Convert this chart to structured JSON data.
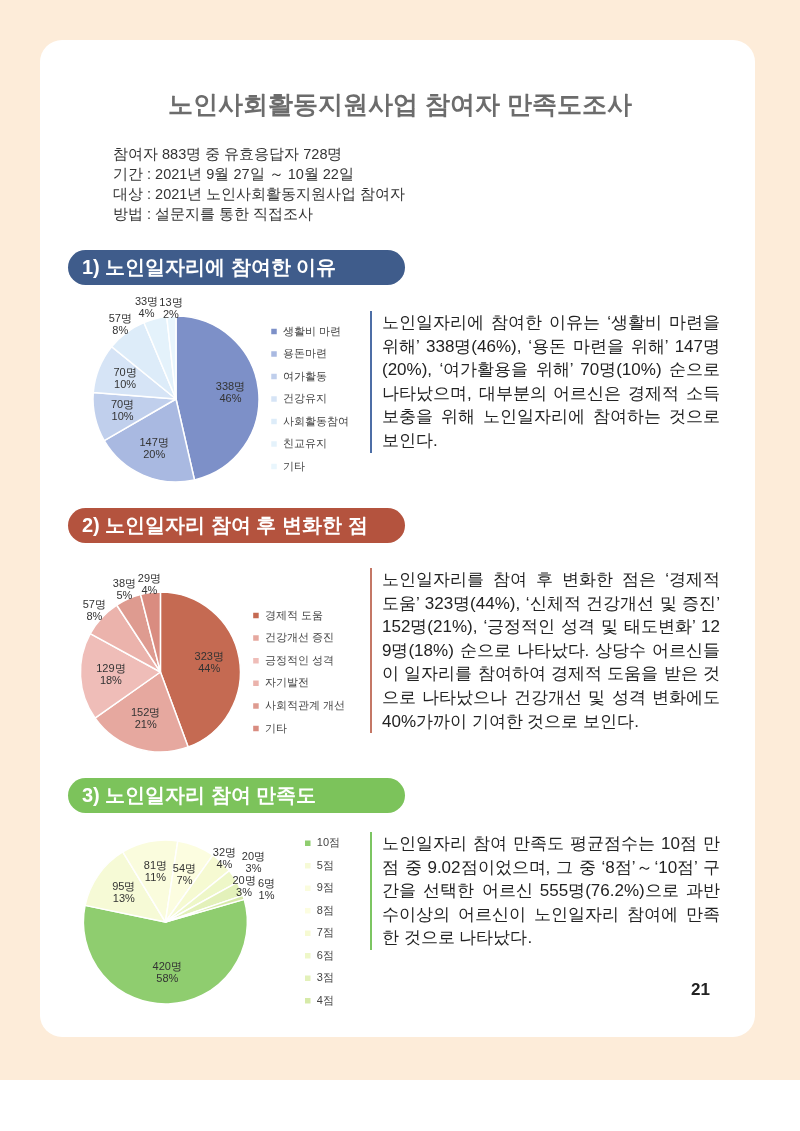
{
  "chart_data": [
    {
      "type": "other",
      "title": "노인사회활동지원사업 참여자 만족도조사",
      "subtitle": "참여자 883명 중 유효응답자 728명\n기간 : 2021년 9월 27일 ～ 10월 22일\n대상 : 2021년 노인사회활동지원사업 참여자\n방법 : 설문지를 통한 직접조사"
    },
    {
      "type": "pie",
      "title": "1) 노인일자리에 참여한 이유",
      "categories": [
        "생활비 마련",
        "용돈마련",
        "여가활동",
        "건강유지",
        "사회활동참여",
        "친교유지",
        "기타"
      ],
      "values": [
        338,
        147,
        70,
        70,
        57,
        33,
        13
      ],
      "colors": [
        "#7d90c8",
        "#a9b9e1",
        "#c0cfec",
        "#d6e4f6",
        "#ddecf9",
        "#e4f2fb",
        "#e9f6fd"
      ],
      "value_labels": [
        "338명\n46%",
        "147명\n20%",
        "70명\n10%",
        "70명\n10%",
        "57명\n8%",
        "33명\n4%",
        "13명\n2%"
      ],
      "legend": "right",
      "annotations": [
        "노인일자리에 참여한 이유는 ‘생활비 마련을 위해’ 338명(46%), ‘용돈 마련을 위해’ 147명(20%), ‘여가활용을 위해’ 70명(10%) 순으로 나타났으며, 대부분의 어르신은 경제적 소득 보충을 위해 노인일자리에 참여하는 것으로 보인다."
      ]
    },
    {
      "type": "pie",
      "title": "2) 노인일자리 참여 후 변화한 점",
      "categories": [
        "경제적 도움",
        "건강개선 증진",
        "긍정적인 성격",
        "자기발전",
        "사회적관계 개선",
        "기타"
      ],
      "values": [
        323,
        152,
        129,
        57,
        38,
        29
      ],
      "colors": [
        "#c56a52",
        "#e6a89f",
        "#efbdb8",
        "#ebb3ac",
        "#de9b90",
        "#d98c80"
      ],
      "value_labels": [
        "323명\n44%",
        "152명\n21%",
        "129명\n18%",
        "57명\n8%",
        "38명\n5%",
        "29명\n4%"
      ],
      "legend": "right",
      "annotations": [
        "노인일자리를 참여 후 변화한 점은 ‘경제적 도움’ 323명(44%), ‘신체적 건강개선 및 증진’ 152명(21%), ‘긍정적인 성격 및 태도변화’ 129명(18%) 순으로 나타났다. 상당수 어르신들이 일자리를 참여하여 경제적 도움을 받은 것으로 나타났으나 건강개선 및 성격 변화에도 40%가까이 기여한 것으로 보인다."
      ]
    },
    {
      "type": "pie",
      "title": "3) 노인일자리 참여 만족도",
      "categories": [
        "10점",
        "5점",
        "9점",
        "8점",
        "7점",
        "6점",
        "3점",
        "4점"
      ],
      "values": [
        420,
        95,
        81,
        54,
        32,
        20,
        20,
        6
      ],
      "colors": [
        "#8fcd6f",
        "#f6fad6",
        "#fafcdd",
        "#fcfde0",
        "#f6fad2",
        "#eef7c8",
        "#e3f1ba",
        "#d6eaa8"
      ],
      "value_labels": [
        "420명\n58%",
        "95명\n13%",
        "81명\n11%",
        "54명\n7%",
        "32명\n4%",
        "20명\n3%",
        "20명\n3%",
        "6명\n1%"
      ],
      "legend": "right",
      "annotations": [
        "노인일자리 참여 만족도 평균점수는 10점 만점 중 9.02점이었으며, 그 중 ‘8점’～‘10점’ 구간을 선택한 어르신 555명(76.2%)으로 과반수이상의 어르신이 노인일자리 참여에 만족한 것으로 나타났다.",
        "21"
      ]
    }
  ]
}
